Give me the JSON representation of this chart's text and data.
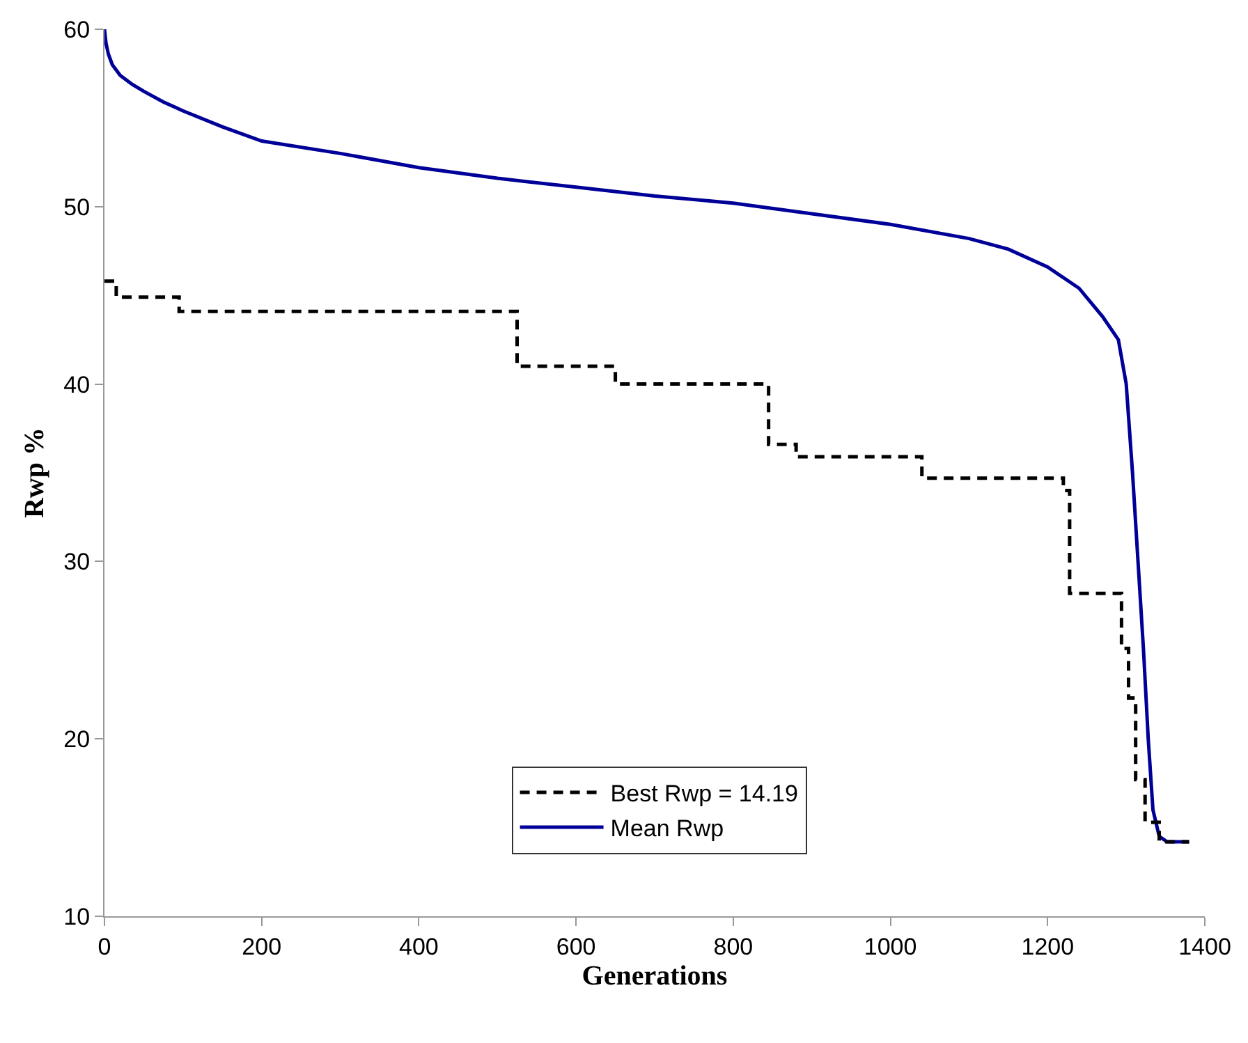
{
  "chart_data": {
    "type": "line",
    "xlabel": "Generations",
    "ylabel": "Rwp %",
    "xlim": [
      0,
      1400
    ],
    "xticks": [
      0,
      200,
      400,
      600,
      800,
      1000,
      1200,
      1400
    ],
    "ylim": [
      10,
      60
    ],
    "yticks": [
      10,
      20,
      30,
      40,
      50,
      60
    ],
    "legend": "bottom",
    "marker": "none",
    "series": [
      {
        "name": "Best Rwp = 14.19",
        "type": "step",
        "color": "#000000",
        "line_style": "dashed",
        "x": [
          0,
          15,
          95,
          525,
          650,
          845,
          880,
          1040,
          1220,
          1228,
          1294,
          1303,
          1312,
          1324,
          1342,
          1380
        ],
        "values": [
          45.8,
          44.9,
          44.1,
          41.0,
          40.0,
          36.6,
          35.9,
          34.7,
          34.0,
          28.2,
          25.1,
          22.3,
          17.7,
          15.3,
          14.2,
          14.2
        ]
      },
      {
        "name": "Mean Rwp",
        "color": "#000099",
        "line_style": "solid",
        "x": [
          0,
          2,
          5,
          10,
          20,
          35,
          50,
          75,
          100,
          150,
          200,
          300,
          400,
          500,
          600,
          700,
          800,
          900,
          1000,
          1100,
          1150,
          1200,
          1240,
          1270,
          1290,
          1300,
          1308,
          1315,
          1322,
          1328,
          1334,
          1342,
          1352,
          1380
        ],
        "values": [
          60,
          59.2,
          58.6,
          58.0,
          57.4,
          56.9,
          56.5,
          55.9,
          55.4,
          54.5,
          53.7,
          53.0,
          52.2,
          51.6,
          51.1,
          50.6,
          50.2,
          49.6,
          49.0,
          48.2,
          47.6,
          46.6,
          45.4,
          43.8,
          42.5,
          40,
          35,
          30,
          25,
          20,
          16,
          14.5,
          14.2,
          14.2
        ]
      }
    ]
  }
}
